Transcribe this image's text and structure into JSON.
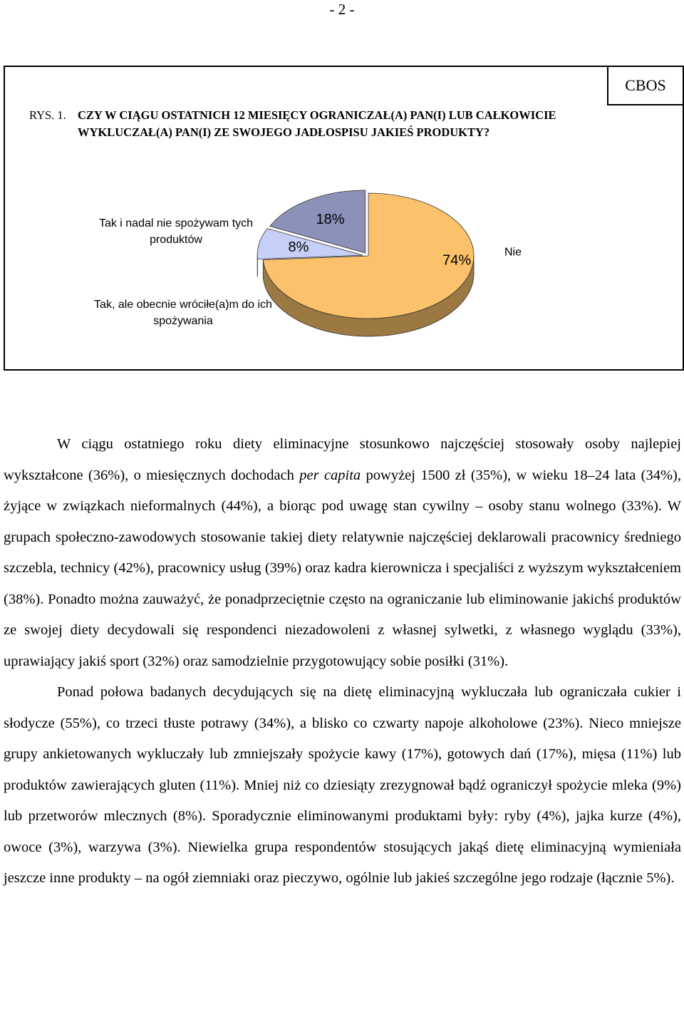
{
  "page_number": "- 2 -",
  "figure": {
    "source": "CBOS",
    "label": "RYS. 1.",
    "title": "CZY W CIĄGU OSTATNICH 12 MIESIĘCY OGRANICZAŁ(A) PAN(I) LUB CAŁKOWICIE WYKLUCZAŁ(A) PAN(I) ZE SWOJEGO JADŁOSPISU JAKIEŚ PRODUKTY?"
  },
  "chart_data": {
    "type": "pie",
    "categories": [
      "Nie",
      "Tak, ale obecnie wróciłe(a)m do ich spożywania",
      "Tak i nadal nie spożywam tych produktów"
    ],
    "values": [
      74,
      8,
      18
    ],
    "value_labels": [
      "74%",
      "8%",
      "18%"
    ],
    "colors": [
      "#fbc16b",
      "#c6cff7",
      "#8c91b9"
    ]
  },
  "paragraphs": [
    [
      "W ciągu ostatniego roku diety eliminacyjne stosunkowo najczęściej stosowały osoby najlepiej wykształcone (36%), o miesięcznych dochodach ",
      "per capita",
      " powyżej 1500 zł (35%), w wieku 18–24 lata (34%), żyjące w związkach nieformalnych (44%), a biorąc pod uwagę stan cywilny – osoby stanu wolnego (33%). W grupach społeczno-zawodowych stosowanie takiej diety relatywnie najczęściej deklarowali pracownicy średniego szczebla, technicy (42%), pracownicy usług (39%) oraz kadra kierownicza i specjaliści z wyższym wykształceniem (38%). Ponadto można zauważyć, że ponadprzeciętnie często na ograniczanie lub eliminowanie jakichś produktów ze swojej diety decydowali się respondenci niezadowoleni z własnej sylwetki, z własnego wyglądu (33%), uprawiający jakiś sport (32%) oraz samodzielnie przygotowujący sobie posiłki (31%)."
    ],
    [
      "Ponad połowa badanych decydujących się na dietę eliminacyjną wykluczała lub ograniczała cukier i słodycze (55%), co trzeci tłuste potrawy (34%), a blisko co czwarty napoje alkoholowe (23%). Nieco mniejsze grupy ankietowanych wykluczały lub zmniejszały spożycie kawy (17%), gotowych dań (17%), mięsa (11%) lub produktów zawierających gluten (11%). Mniej niż co dziesiąty zrezygnował bądź ograniczył spożycie mleka (9%) lub przetworów mlecznych (8%). Sporadycznie eliminowanymi produktami były: ryby (4%), jajka kurze (4%), owoce (3%), warzywa (3%). Niewielka grupa respondentów stosujących jakąś dietę eliminacyjną wymieniała jeszcze inne produkty – na ogół ziemniaki oraz pieczywo, ogólnie lub jakieś szczególne jego rodzaje (łącznie 5%)."
    ]
  ]
}
